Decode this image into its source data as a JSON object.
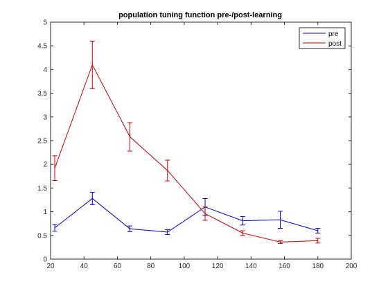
{
  "chart_data": {
    "type": "line",
    "title": "population tuning function pre-/post-learning",
    "xlabel": "",
    "ylabel": "",
    "xlim": [
      20,
      200
    ],
    "ylim": [
      0,
      5
    ],
    "xticks": [
      20,
      40,
      60,
      80,
      100,
      120,
      140,
      160,
      180,
      200
    ],
    "yticks": [
      0,
      0.5,
      1,
      1.5,
      2,
      2.5,
      3,
      3.5,
      4,
      4.5,
      5
    ],
    "ytick_labels": [
      "0",
      "0.5",
      "1",
      "1.5",
      "2",
      "2.5",
      "3",
      "3.5",
      "4",
      "4.5",
      "5"
    ],
    "grid": false,
    "legend_position": "top-right",
    "x": [
      22.5,
      45,
      67.5,
      90,
      112.5,
      135,
      157.5,
      180
    ],
    "series": [
      {
        "name": "pre",
        "color": "#0000c8",
        "values": [
          0.66,
          1.28,
          0.64,
          0.57,
          1.1,
          0.81,
          0.83,
          0.6
        ],
        "errors": [
          0.07,
          0.13,
          0.06,
          0.05,
          0.18,
          0.09,
          0.18,
          0.05
        ]
      },
      {
        "name": "post",
        "color": "#c80000",
        "values": [
          1.92,
          4.1,
          2.58,
          1.87,
          0.96,
          0.55,
          0.36,
          0.39
        ],
        "errors": [
          0.26,
          0.5,
          0.3,
          0.22,
          0.14,
          0.05,
          0.03,
          0.05
        ]
      }
    ]
  }
}
